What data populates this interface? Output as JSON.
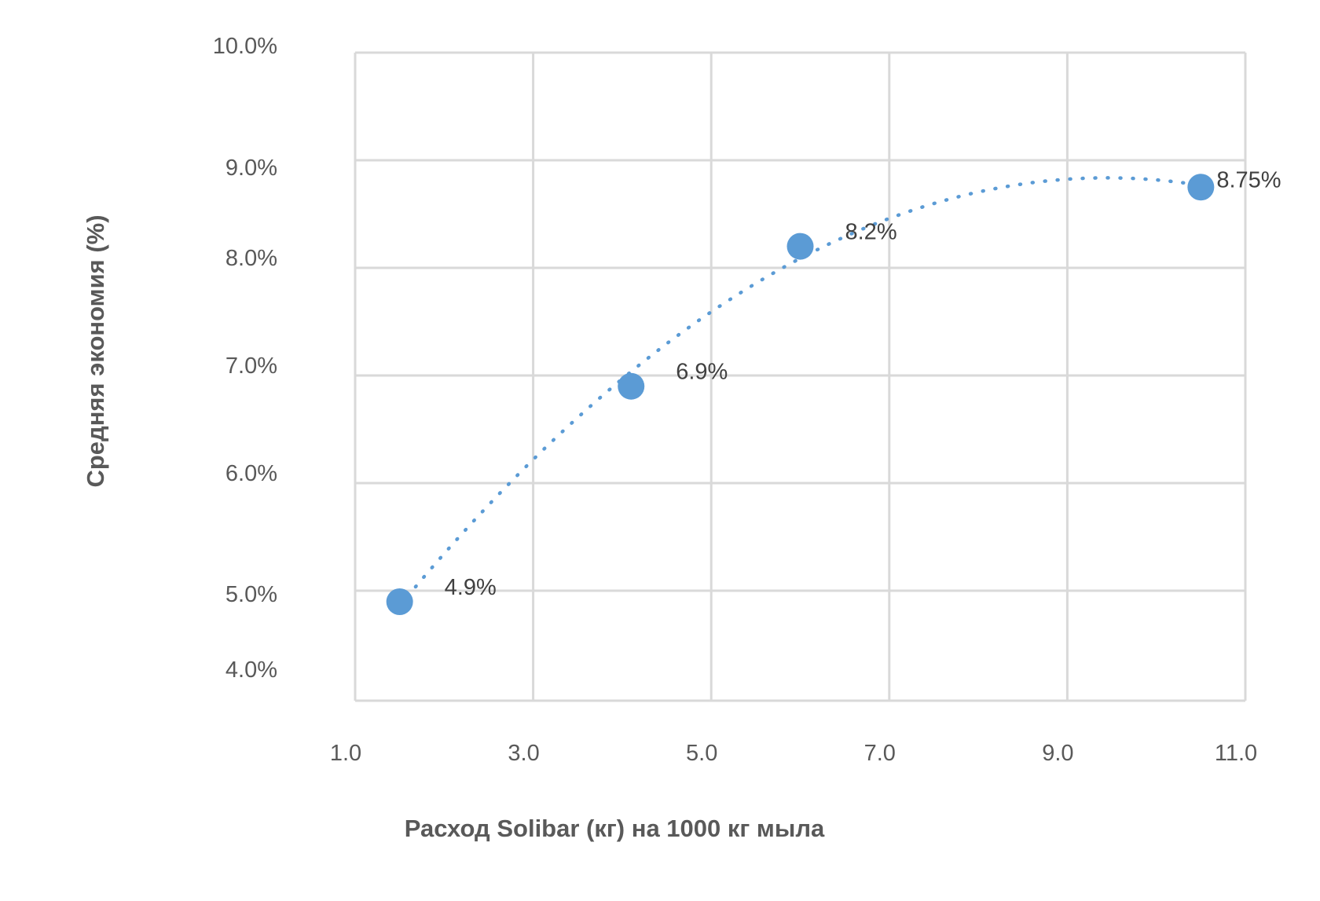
{
  "chart_data": {
    "type": "scatter",
    "xlabel": "Расход Solibar  (кг) на  1000 кг мыла",
    "ylabel": "Средняя экономия (%)",
    "xlim": [
      1.0,
      11.0
    ],
    "ylim": [
      4.0,
      10.0
    ],
    "x_ticks": [
      "1.0",
      "3.0",
      "5.0",
      "7.0",
      "9.0",
      "11.0"
    ],
    "y_ticks": [
      "10.0%",
      "9.0%",
      "8.0%",
      "7.0%",
      "6.0%",
      "5.0%",
      "4.0%"
    ],
    "grid": true,
    "series": [
      {
        "points": [
          {
            "x": 1.5,
            "y": 4.9,
            "label": "4.9%"
          },
          {
            "x": 4.1,
            "y": 6.9,
            "label": "6.9%"
          },
          {
            "x": 6.0,
            "y": 8.2,
            "label": "8.2%"
          },
          {
            "x": 10.5,
            "y": 8.75,
            "label": "8.75%"
          }
        ]
      }
    ],
    "trendline": {
      "type": "polynomial",
      "style": "dotted",
      "peak": {
        "x": 8.6,
        "y": 9.15
      }
    },
    "colors": {
      "marker": "#5b9bd5",
      "trendline": "#5b9bd5",
      "grid": "#d9d9d9"
    }
  }
}
